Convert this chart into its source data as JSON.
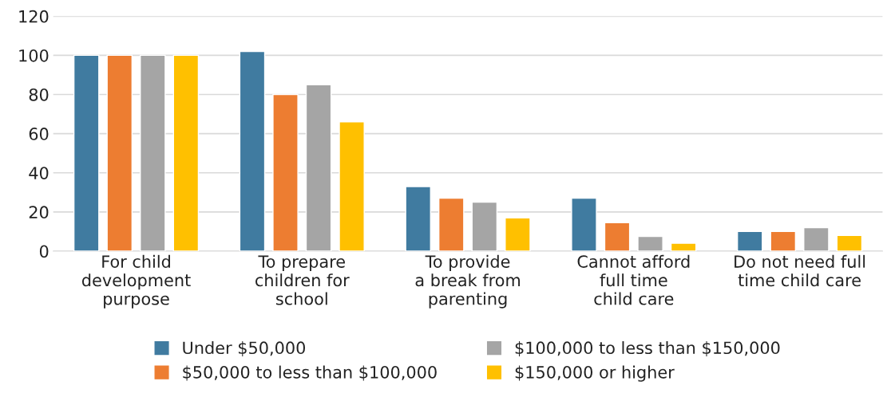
{
  "chart_data": {
    "type": "bar",
    "categories": [
      "For child\ndevelopment\npurpose",
      "To prepare\nchildren for\nschool",
      "To provide\na break from\nparenting",
      "Cannot afford\nfull time\nchild care",
      "Do not need full\ntime child care"
    ],
    "series": [
      {
        "name": "Under $50,000",
        "color": "#407ba0",
        "values": [
          100,
          102,
          33,
          27,
          10
        ]
      },
      {
        "name": "$50,000 to less than $100,000",
        "color": "#ed7d31",
        "values": [
          100,
          80,
          27,
          14.5,
          10
        ]
      },
      {
        "name": "$100,000 to less than $150,000",
        "color": "#a5a5a5",
        "values": [
          100,
          85,
          25,
          7.5,
          12
        ]
      },
      {
        "name": "$150,000 or higher",
        "color": "#ffc000",
        "values": [
          100,
          66,
          17,
          4,
          8
        ]
      }
    ],
    "ylim": [
      0,
      120
    ],
    "yticks": [
      0,
      20,
      40,
      60,
      80,
      100,
      120
    ],
    "grid": "y",
    "legend": "bottom"
  }
}
